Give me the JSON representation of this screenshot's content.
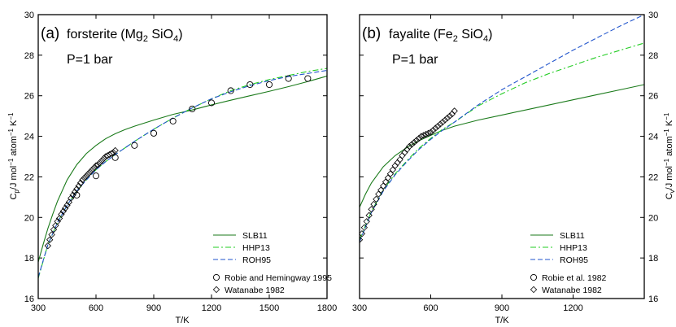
{
  "chart_data": [
    {
      "type": "line",
      "panel_label": "(a)",
      "mineral": "forsterite",
      "formula": {
        "a": "(Mg",
        "b": "2",
        "c": " SiO",
        "d": "4",
        "e": ")"
      },
      "pressure_text": "P=1 bar",
      "xlabel": "T/K",
      "ylabel": {
        "a": "C",
        "b": "p",
        "c": "/J mol",
        "d": "−1",
        "e": " atom",
        "f": "−1",
        "g": " K",
        "h": "−1"
      },
      "xlim": [
        300,
        1800
      ],
      "ylim": [
        16,
        30
      ],
      "xticks": [
        "300",
        "600",
        "900",
        "1200",
        "1500",
        "1800"
      ],
      "yticks": [
        "16",
        "18",
        "20",
        "22",
        "24",
        "26",
        "28",
        "30"
      ],
      "yaxis_side": "left",
      "grid": false,
      "legend_position": "bottom-right",
      "series": [
        {
          "name": "SLB11",
          "style": "solid",
          "color": "#1a7a1a",
          "x": [
            300,
            325,
            350,
            375,
            400,
            450,
            500,
            550,
            600,
            650,
            700,
            750,
            800,
            900,
            1000,
            1100,
            1200,
            1300,
            1400,
            1500,
            1600,
            1700,
            1800
          ],
          "y": [
            17.8,
            18.65,
            19.45,
            20.15,
            20.8,
            21.85,
            22.6,
            23.15,
            23.55,
            23.88,
            24.13,
            24.33,
            24.5,
            24.8,
            25.08,
            25.3,
            25.55,
            25.78,
            26.0,
            26.22,
            26.45,
            26.7,
            26.97
          ]
        },
        {
          "name": "HHP13",
          "style": "dashdot",
          "color": "#22cc22",
          "x": [
            300,
            350,
            400,
            450,
            500,
            550,
            600,
            650,
            700,
            800,
            900,
            1000,
            1100,
            1200,
            1300,
            1400,
            1500,
            1600,
            1700,
            1800
          ],
          "y": [
            17.0,
            18.65,
            19.75,
            20.6,
            21.3,
            21.85,
            22.35,
            22.75,
            23.1,
            23.75,
            24.35,
            24.9,
            25.4,
            25.85,
            26.25,
            26.55,
            26.8,
            27.0,
            27.2,
            27.35
          ]
        },
        {
          "name": "ROH95",
          "style": "dashed",
          "color": "#2255cc",
          "x": [
            300,
            350,
            400,
            450,
            500,
            550,
            600,
            650,
            700,
            800,
            900,
            1000,
            1100,
            1200,
            1300,
            1400,
            1500,
            1600,
            1700,
            1800
          ],
          "y": [
            17.05,
            18.65,
            19.75,
            20.6,
            21.3,
            21.85,
            22.35,
            22.75,
            23.1,
            23.75,
            24.35,
            24.9,
            25.4,
            25.85,
            26.2,
            26.5,
            26.75,
            26.95,
            27.1,
            27.25
          ]
        },
        {
          "name": "Robie and Hemingway 1995",
          "style": "circle",
          "x": [
            500,
            600,
            700,
            800,
            900,
            1000,
            1100,
            1200,
            1300,
            1400,
            1500,
            1600,
            1700
          ],
          "y": [
            21.1,
            22.05,
            22.95,
            23.55,
            24.15,
            24.75,
            25.35,
            25.65,
            26.25,
            26.55,
            26.55,
            26.85,
            26.85
          ]
        },
        {
          "name": "Watanabe 1982",
          "style": "diamond",
          "x": [
            350,
            360,
            370,
            380,
            390,
            400,
            410,
            420,
            430,
            440,
            450,
            460,
            470,
            480,
            490,
            500,
            510,
            520,
            530,
            540,
            550,
            560,
            570,
            580,
            590,
            600,
            610,
            620,
            630,
            640,
            650,
            660,
            670,
            680,
            690,
            700
          ],
          "y": [
            18.6,
            18.9,
            19.15,
            19.4,
            19.6,
            19.8,
            19.95,
            20.15,
            20.3,
            20.45,
            20.6,
            20.75,
            20.95,
            21.1,
            21.25,
            21.4,
            21.55,
            21.7,
            21.85,
            21.95,
            22.05,
            22.15,
            22.25,
            22.35,
            22.45,
            22.55,
            22.6,
            22.7,
            22.8,
            22.9,
            23.0,
            23.05,
            23.1,
            23.15,
            23.2,
            23.3
          ]
        }
      ]
    },
    {
      "type": "line",
      "panel_label": "(b)",
      "mineral": "fayalite",
      "formula": {
        "a": "(Fe",
        "b": "2",
        "c": " SiO",
        "d": "4",
        "e": ")"
      },
      "pressure_text": "P=1 bar",
      "xlabel": "T/K",
      "ylabel": {
        "a": "C",
        "b": "v",
        "c": "/J mol",
        "d": "−1",
        "e": " atom",
        "f": "−1",
        "g": " K",
        "h": "−1"
      },
      "xlim": [
        300,
        1500
      ],
      "ylim": [
        16,
        30
      ],
      "xticks": [
        "300",
        "600",
        "900",
        "1200"
      ],
      "yticks": [
        "16",
        "18",
        "20",
        "22",
        "24",
        "26",
        "28",
        "30"
      ],
      "yaxis_side": "right",
      "grid": false,
      "legend_position": "bottom-right",
      "series": [
        {
          "name": "SLB11",
          "style": "solid",
          "color": "#1a7a1a",
          "x": [
            300,
            325,
            350,
            400,
            450,
            500,
            550,
            600,
            650,
            700,
            800,
            900,
            1000,
            1100,
            1200,
            1300,
            1400,
            1500
          ],
          "y": [
            20.5,
            21.15,
            21.7,
            22.5,
            23.05,
            23.45,
            23.78,
            24.05,
            24.3,
            24.5,
            24.8,
            25.05,
            25.3,
            25.55,
            25.8,
            26.05,
            26.3,
            26.55
          ]
        },
        {
          "name": "HHP13",
          "style": "dashdot",
          "color": "#22cc22",
          "x": [
            300,
            350,
            400,
            450,
            500,
            550,
            600,
            650,
            700,
            800,
            900,
            1000,
            1100,
            1200,
            1300,
            1400,
            1500
          ],
          "y": [
            18.9,
            20.3,
            21.35,
            22.15,
            22.8,
            23.4,
            23.9,
            24.35,
            24.7,
            25.5,
            26.1,
            26.65,
            27.1,
            27.5,
            27.9,
            28.25,
            28.6
          ]
        },
        {
          "name": "ROH95",
          "style": "dashed",
          "color": "#2255cc",
          "x": [
            300,
            350,
            400,
            450,
            500,
            550,
            600,
            650,
            700,
            800,
            900,
            1000,
            1100,
            1200,
            1300,
            1400,
            1500
          ],
          "y": [
            18.8,
            20.25,
            21.3,
            22.1,
            22.75,
            23.35,
            23.85,
            24.3,
            24.7,
            25.55,
            26.3,
            26.95,
            27.6,
            28.25,
            28.85,
            29.45,
            30.0
          ]
        },
        {
          "name": "Robie et al. 1982",
          "style": "circle",
          "x": [],
          "y": []
        },
        {
          "name": "Watanabe 1982",
          "style": "diamond",
          "x": [
            300,
            310,
            320,
            330,
            340,
            350,
            360,
            370,
            380,
            390,
            400,
            410,
            420,
            430,
            440,
            450,
            460,
            470,
            480,
            490,
            500,
            510,
            520,
            530,
            540,
            550,
            560,
            570,
            580,
            590,
            600,
            610,
            620,
            630,
            640,
            650,
            660,
            670,
            680,
            690,
            700
          ],
          "y": [
            18.9,
            19.2,
            19.5,
            19.8,
            20.1,
            20.4,
            20.65,
            20.9,
            21.15,
            21.35,
            21.55,
            21.75,
            21.95,
            22.15,
            22.35,
            22.55,
            22.7,
            22.85,
            23.05,
            23.2,
            23.35,
            23.5,
            23.6,
            23.7,
            23.8,
            23.9,
            24.0,
            24.05,
            24.1,
            24.15,
            24.2,
            24.3,
            24.4,
            24.5,
            24.6,
            24.7,
            24.8,
            24.9,
            25.0,
            25.1,
            25.25
          ]
        }
      ]
    }
  ]
}
